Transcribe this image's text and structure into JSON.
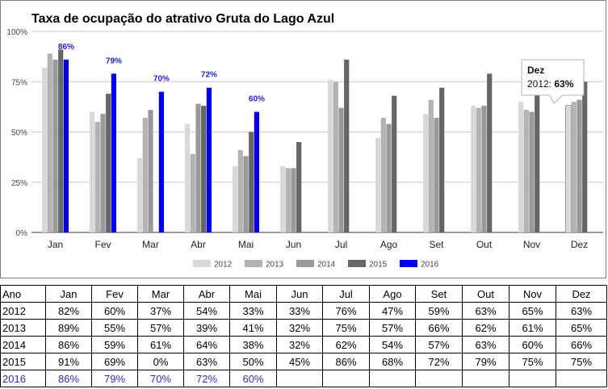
{
  "chart_data": {
    "type": "bar",
    "title": "Taxa de ocupação do atrativo Gruta do Lago Azul",
    "categories": [
      "Jan",
      "Fev",
      "Mar",
      "Abr",
      "Mai",
      "Jun",
      "Jul",
      "Ago",
      "Set",
      "Out",
      "Nov",
      "Dez"
    ],
    "ylim": [
      0,
      100
    ],
    "yticks": [
      "0%",
      "25%",
      "50%",
      "75%",
      "100%"
    ],
    "grid": true,
    "legend_position": "bottom",
    "series": [
      {
        "name": "2012",
        "color": "#d9d9d9",
        "values": [
          82,
          60,
          37,
          54,
          33,
          33,
          76,
          47,
          59,
          63,
          65,
          63
        ]
      },
      {
        "name": "2013",
        "color": "#b3b3b3",
        "values": [
          89,
          55,
          57,
          39,
          41,
          32,
          75,
          57,
          66,
          62,
          61,
          65
        ]
      },
      {
        "name": "2014",
        "color": "#999999",
        "values": [
          86,
          59,
          61,
          64,
          38,
          32,
          62,
          54,
          57,
          63,
          60,
          66
        ]
      },
      {
        "name": "2015",
        "color": "#666666",
        "values": [
          91,
          69,
          0,
          63,
          50,
          45,
          86,
          68,
          72,
          79,
          75,
          75
        ]
      },
      {
        "name": "2016",
        "color": "#0000ee",
        "values": [
          86,
          79,
          70,
          72,
          60,
          null,
          null,
          null,
          null,
          null,
          null,
          null
        ]
      }
    ],
    "data_labels_series": "2016",
    "data_labels": [
      "86%",
      "79%",
      "70%",
      "72%",
      "60%"
    ],
    "tooltip": {
      "category": "Dez",
      "series": "2012",
      "value": "63%"
    }
  },
  "table": {
    "header": [
      "Ano",
      "Jan",
      "Fev",
      "Mar",
      "Abr",
      "Mai",
      "Jun",
      "Jul",
      "Ago",
      "Set",
      "Out",
      "Nov",
      "Dez"
    ],
    "rows": [
      [
        "2012",
        "82%",
        "60%",
        "37%",
        "54%",
        "33%",
        "33%",
        "76%",
        "47%",
        "59%",
        "63%",
        "65%",
        "63%"
      ],
      [
        "2013",
        "89%",
        "55%",
        "57%",
        "39%",
        "41%",
        "32%",
        "75%",
        "57%",
        "66%",
        "62%",
        "61%",
        "65%"
      ],
      [
        "2014",
        "86%",
        "59%",
        "61%",
        "64%",
        "38%",
        "32%",
        "62%",
        "54%",
        "57%",
        "63%",
        "60%",
        "66%"
      ],
      [
        "2015",
        "91%",
        "69%",
        "0%",
        "63%",
        "50%",
        "45%",
        "86%",
        "68%",
        "72%",
        "79%",
        "75%",
        "75%"
      ],
      [
        "2016",
        "86%",
        "79%",
        "70%",
        "72%",
        "60%",
        "",
        "",
        "",
        "",
        "",
        "",
        ""
      ]
    ]
  }
}
